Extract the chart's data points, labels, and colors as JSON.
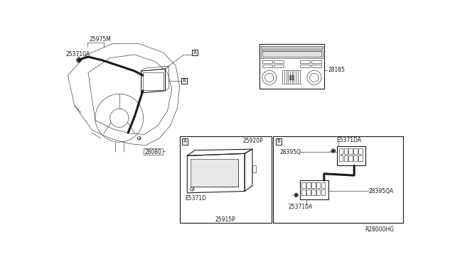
{
  "bg_color": "#ffffff",
  "lc": "#1a1a1a",
  "gray": "#888888",
  "thin": 0.4,
  "med": 0.8,
  "thick": 2.2,
  "fs": 5.5,
  "fs_sm": 4.8,
  "labels": {
    "25975M": "25975M",
    "253710A_tl": "253710A",
    "28080": "28080",
    "28185": "28185",
    "25920P": "25920P",
    "25915P": "25915P",
    "E5371D": "E5371D",
    "E5371DA": "E5371DA",
    "28395Q": "28395Q",
    "28395QA": "28395QA",
    "253710A_br": "253710A",
    "footer": "R28000HG"
  }
}
